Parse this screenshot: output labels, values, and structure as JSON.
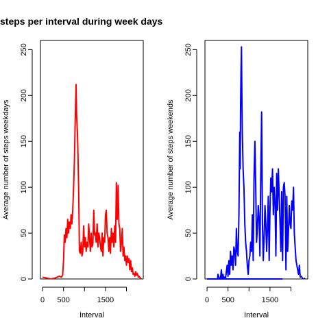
{
  "chart_data": {
    "title": "steps per interval during week days",
    "type": "line",
    "panels": [
      {
        "id": "weekdays",
        "color": "#ff0000",
        "xlabel": "Interval",
        "ylabel": "Average number of steps weekdays",
        "xlim": [
          -50,
          2400
        ],
        "ylim": [
          0,
          260
        ],
        "xticks": [
          0,
          500,
          1500
        ],
        "xtick_labels": [
          "0",
          "500",
          "1500"
        ],
        "yticks": [
          0,
          50,
          100,
          150,
          200,
          250
        ],
        "ytick_labels": [
          "0",
          "50",
          "100",
          "150",
          "200",
          "250"
        ],
        "series": {
          "x": [
            0,
            100,
            200,
            300,
            400,
            450,
            480,
            500,
            520,
            540,
            560,
            580,
            600,
            620,
            640,
            660,
            680,
            700,
            720,
            740,
            760,
            780,
            800,
            810,
            820,
            830,
            840,
            860,
            880,
            900,
            920,
            940,
            960,
            980,
            1000,
            1020,
            1040,
            1060,
            1080,
            1100,
            1120,
            1140,
            1160,
            1180,
            1200,
            1220,
            1240,
            1260,
            1280,
            1300,
            1320,
            1340,
            1360,
            1380,
            1400,
            1420,
            1440,
            1460,
            1480,
            1500,
            1520,
            1540,
            1560,
            1580,
            1600,
            1620,
            1640,
            1660,
            1680,
            1700,
            1720,
            1740,
            1760,
            1780,
            1800,
            1820,
            1840,
            1860,
            1880,
            1900,
            1920,
            1940,
            1960,
            1980,
            2000,
            2020,
            2040,
            2060,
            2080,
            2100,
            2120,
            2140,
            2160,
            2180,
            2200,
            2220,
            2240,
            2260,
            2280,
            2300,
            2330,
            2355
          ],
          "y": [
            2,
            1,
            0,
            1,
            3,
            2,
            4,
            20,
            48,
            40,
            55,
            45,
            65,
            50,
            62,
            55,
            70,
            60,
            75,
            100,
            130,
            175,
            212,
            180,
            170,
            160,
            145,
            100,
            30,
            28,
            40,
            25,
            30,
            58,
            35,
            45,
            30,
            40,
            35,
            60,
            45,
            30,
            50,
            35,
            38,
            75,
            48,
            50,
            40,
            60,
            35,
            50,
            45,
            35,
            30,
            50,
            25,
            45,
            40,
            70,
            75,
            50,
            45,
            30,
            45,
            28,
            55,
            40,
            50,
            35,
            58,
            40,
            105,
            65,
            102,
            60,
            55,
            30,
            40,
            55,
            25,
            35,
            20,
            25,
            15,
            25,
            18,
            22,
            10,
            20,
            8,
            12,
            5,
            6,
            3,
            8,
            4,
            6,
            2,
            3,
            1,
            0
          ]
        }
      },
      {
        "id": "weekends",
        "color": "#0000ff",
        "xlabel": "Interval",
        "ylabel": "Average number of steps weekends",
        "xlim": [
          -50,
          2400
        ],
        "ylim": [
          0,
          260
        ],
        "xticks": [
          0,
          500,
          1500
        ],
        "xtick_labels": [
          "0",
          "500",
          "1500"
        ],
        "yticks": [
          0,
          50,
          100,
          150,
          200,
          250
        ],
        "ytick_labels": [
          "0",
          "50",
          "100",
          "150",
          "200",
          "250"
        ],
        "series": {
          "x": [
            0,
            100,
            200,
            250,
            260,
            300,
            320,
            340,
            360,
            380,
            400,
            420,
            440,
            460,
            480,
            500,
            520,
            540,
            560,
            580,
            600,
            620,
            640,
            660,
            680,
            700,
            720,
            740,
            760,
            780,
            790,
            800,
            810,
            820,
            830,
            840,
            860,
            880,
            900,
            920,
            940,
            960,
            980,
            1000,
            1020,
            1040,
            1060,
            1080,
            1100,
            1120,
            1140,
            1160,
            1180,
            1200,
            1220,
            1240,
            1260,
            1280,
            1300,
            1320,
            1340,
            1360,
            1380,
            1400,
            1420,
            1440,
            1460,
            1480,
            1500,
            1520,
            1540,
            1560,
            1580,
            1600,
            1620,
            1640,
            1660,
            1680,
            1700,
            1720,
            1740,
            1760,
            1780,
            1800,
            1820,
            1840,
            1860,
            1880,
            1900,
            1920,
            1940,
            1960,
            1980,
            2000,
            2020,
            2040,
            2060,
            2080,
            2100,
            2120,
            2140,
            2160,
            2180,
            2200,
            2220,
            2240,
            2260,
            2280,
            2300,
            2340
          ],
          "y": [
            0,
            0,
            0,
            0,
            5,
            0,
            0,
            10,
            0,
            5,
            0,
            2,
            0,
            8,
            15,
            3,
            20,
            5,
            30,
            15,
            25,
            10,
            35,
            30,
            15,
            55,
            30,
            25,
            70,
            160,
            120,
            190,
            230,
            253,
            200,
            160,
            120,
            100,
            60,
            40,
            30,
            15,
            5,
            20,
            25,
            40,
            30,
            70,
            20,
            110,
            150,
            100,
            40,
            55,
            80,
            65,
            25,
            110,
            182,
            60,
            20,
            45,
            80,
            60,
            30,
            55,
            90,
            20,
            75,
            110,
            95,
            120,
            70,
            100,
            85,
            25,
            115,
            75,
            120,
            90,
            60,
            30,
            95,
            20,
            100,
            105,
            90,
            10,
            90,
            30,
            50,
            80,
            60,
            55,
            85,
            75,
            100,
            50,
            35,
            20,
            15,
            10,
            5,
            15,
            2,
            3,
            2,
            0,
            0,
            1
          ]
        },
        "baseline": {
          "x": [
            0,
            1800
          ],
          "y": [
            0,
            0
          ]
        }
      }
    ]
  }
}
